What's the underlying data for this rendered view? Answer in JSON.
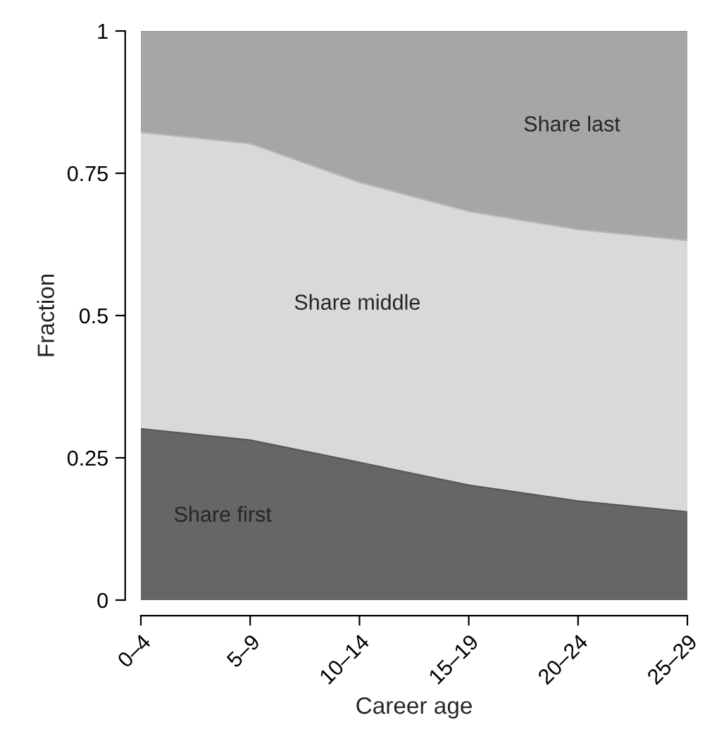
{
  "chart_data": {
    "type": "area",
    "stacked": true,
    "xlabel": "Career age",
    "ylabel": "Fraction",
    "categories": [
      "0–4",
      "5–9",
      "10–14",
      "15–19",
      "20–24",
      "25–29"
    ],
    "series": [
      {
        "name": "Share first",
        "color": "#666666",
        "values": [
          0.301,
          0.281,
          0.242,
          0.202,
          0.174,
          0.155
        ]
      },
      {
        "name": "Share middle",
        "color": "#d9d9d9",
        "values": [
          0.521,
          0.521,
          0.492,
          0.481,
          0.477,
          0.477
        ]
      },
      {
        "name": "Share last",
        "color": "#a6a6a6",
        "values": [
          0.178,
          0.198,
          0.266,
          0.317,
          0.349,
          0.368
        ]
      }
    ],
    "ylim": [
      0,
      1
    ],
    "yticks": [
      0,
      0.25,
      0.5,
      0.75,
      1
    ],
    "legend": false
  }
}
